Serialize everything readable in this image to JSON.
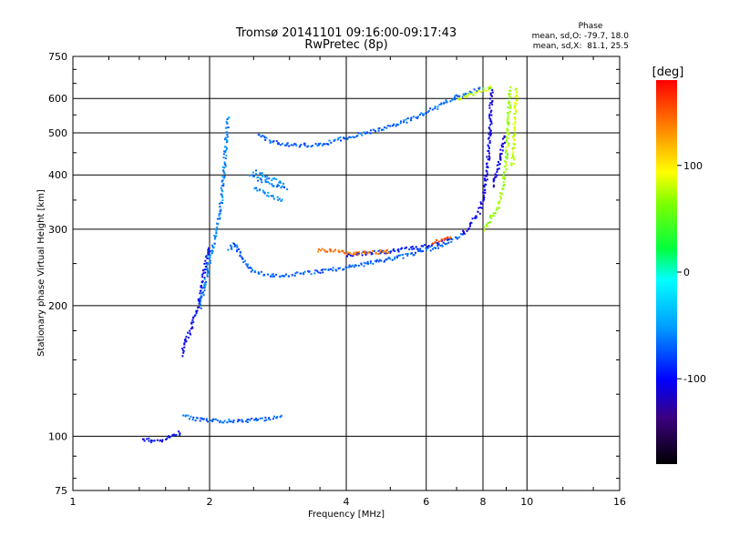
{
  "title_line1": "Tromsø 20141101 09:16:00-09:17:43",
  "title_line2": "RwPretec (8p)",
  "phase_info": {
    "heading": "Phase",
    "line_o": "mean, sd,O: -79.7, 18.0",
    "line_x": "mean, sd,X:  81.1, 25.5"
  },
  "colorbar": {
    "label": "[deg]",
    "ticks": [
      {
        "value": 100,
        "label": "100"
      },
      {
        "value": 0,
        "label": "0"
      },
      {
        "value": -100,
        "label": "-100"
      }
    ],
    "range": [
      -180,
      180
    ],
    "scale": "rainbow"
  },
  "chart_data": {
    "type": "scatter",
    "xlabel": "Frequency [MHz]",
    "ylabel": "Stationary phase Virtual Height [km]",
    "xscale": "log",
    "yscale": "log",
    "xlim": [
      1,
      16
    ],
    "ylim": [
      75,
      750
    ],
    "grid": true,
    "x_ticks": [
      {
        "value": 1,
        "label": "1"
      },
      {
        "value": 2,
        "label": "2"
      },
      {
        "value": 4,
        "label": "4"
      },
      {
        "value": 6,
        "label": "6"
      },
      {
        "value": 8,
        "label": "8"
      },
      {
        "value": 10,
        "label": "10"
      },
      {
        "value": 16,
        "label": "16"
      }
    ],
    "y_ticks": [
      {
        "value": 75,
        "label": "75"
      },
      {
        "value": 100,
        "label": "100"
      },
      {
        "value": 200,
        "label": "200"
      },
      {
        "value": 300,
        "label": "300"
      },
      {
        "value": 400,
        "label": "400"
      },
      {
        "value": 500,
        "label": "500"
      },
      {
        "value": 600,
        "label": "600"
      },
      {
        "value": 750,
        "label": "750"
      }
    ],
    "traces": [
      {
        "points": [
          [
            1.42,
            99
          ],
          [
            1.5,
            98
          ],
          [
            1.55,
            98
          ],
          [
            1.6,
            99
          ],
          [
            1.65,
            101
          ],
          [
            1.7,
            102
          ],
          [
            1.72,
            103
          ]
        ],
        "phase": -100
      },
      {
        "points": [
          [
            1.75,
            112
          ],
          [
            1.85,
            110
          ],
          [
            2.0,
            109
          ],
          [
            2.2,
            109
          ],
          [
            2.4,
            109
          ],
          [
            2.6,
            110
          ],
          [
            2.8,
            111
          ],
          [
            2.9,
            112
          ]
        ],
        "phase": -70
      },
      {
        "points": [
          [
            1.73,
            155
          ],
          [
            1.76,
            165
          ],
          [
            1.82,
            180
          ],
          [
            1.88,
            200
          ],
          [
            1.92,
            225
          ],
          [
            1.95,
            250
          ],
          [
            1.98,
            275
          ]
        ],
        "phase": -100
      },
      {
        "points": [
          [
            1.9,
            200
          ],
          [
            1.95,
            230
          ],
          [
            2.0,
            260
          ],
          [
            2.05,
            290
          ],
          [
            2.1,
            330
          ],
          [
            2.13,
            380
          ],
          [
            2.15,
            430
          ],
          [
            2.17,
            500
          ],
          [
            2.19,
            550
          ]
        ],
        "phase": -60
      },
      {
        "points": [
          [
            2.2,
            270
          ],
          [
            2.25,
            280
          ],
          [
            2.3,
            270
          ],
          [
            2.4,
            250
          ],
          [
            2.5,
            240
          ],
          [
            2.8,
            235
          ],
          [
            3.2,
            238
          ],
          [
            3.6,
            242
          ],
          [
            4.0,
            246
          ],
          [
            4.5,
            252
          ],
          [
            5.0,
            258
          ],
          [
            5.5,
            263
          ],
          [
            6.0,
            270
          ],
          [
            6.5,
            278
          ],
          [
            7.0,
            288
          ],
          [
            7.3,
            296
          ]
        ],
        "phase": -70
      },
      {
        "points": [
          [
            4.0,
            262
          ],
          [
            4.5,
            266
          ],
          [
            5.0,
            268
          ],
          [
            5.5,
            272
          ],
          [
            6.0,
            275
          ],
          [
            6.5,
            282
          ],
          [
            6.8,
            285
          ]
        ],
        "phase": -95
      },
      {
        "points": [
          [
            3.45,
            270
          ],
          [
            3.7,
            268
          ],
          [
            4.0,
            266
          ],
          [
            4.3,
            265
          ],
          [
            4.6,
            266
          ],
          [
            5.0,
            268
          ]
        ],
        "phase": 140
      },
      {
        "points": [
          [
            6.2,
            282
          ],
          [
            6.5,
            285
          ],
          [
            6.8,
            290
          ]
        ],
        "phase": 150
      },
      {
        "points": [
          [
            7.2,
            296
          ],
          [
            7.5,
            310
          ],
          [
            7.8,
            330
          ],
          [
            8.0,
            360
          ],
          [
            8.1,
            400
          ],
          [
            8.2,
            450
          ],
          [
            8.25,
            500
          ],
          [
            8.28,
            550
          ],
          [
            8.3,
            600
          ],
          [
            8.32,
            640
          ]
        ],
        "phase": -105
      },
      {
        "points": [
          [
            8.0,
            300
          ],
          [
            8.3,
            320
          ],
          [
            8.6,
            340
          ],
          [
            8.8,
            370
          ],
          [
            8.9,
            410
          ],
          [
            9.0,
            460
          ],
          [
            9.05,
            520
          ],
          [
            9.1,
            580
          ],
          [
            9.12,
            640
          ]
        ],
        "phase": 70
      },
      {
        "points": [
          [
            9.25,
            420
          ],
          [
            9.3,
            460
          ],
          [
            9.35,
            520
          ],
          [
            9.4,
            580
          ],
          [
            9.45,
            640
          ]
        ],
        "phase": 80
      },
      {
        "points": [
          [
            8.4,
            380
          ],
          [
            8.5,
            400
          ],
          [
            8.6,
            420
          ],
          [
            8.7,
            440
          ],
          [
            8.8,
            470
          ],
          [
            8.9,
            500
          ]
        ],
        "phase": -110
      },
      {
        "points": [
          [
            2.55,
            495
          ],
          [
            2.8,
            475
          ],
          [
            3.2,
            470
          ],
          [
            3.6,
            475
          ],
          [
            4.0,
            490
          ],
          [
            4.5,
            505
          ],
          [
            5.0,
            520
          ],
          [
            5.5,
            540
          ],
          [
            6.0,
            560
          ],
          [
            6.5,
            585
          ],
          [
            7.0,
            610
          ],
          [
            7.5,
            625
          ],
          [
            8.0,
            635
          ]
        ],
        "phase": -70
      },
      {
        "points": [
          [
            7.0,
            600
          ],
          [
            7.5,
            615
          ],
          [
            8.0,
            630
          ],
          [
            8.4,
            640
          ]
        ],
        "phase": 80
      },
      {
        "points": [
          [
            2.5,
            410
          ],
          [
            2.7,
            395
          ],
          [
            2.9,
            385
          ]
        ],
        "phase": -60
      },
      {
        "points": [
          [
            2.5,
            375
          ],
          [
            2.7,
            360
          ],
          [
            2.9,
            350
          ]
        ],
        "phase": -60
      },
      {
        "points": [
          [
            2.45,
            400
          ],
          [
            2.7,
            385
          ],
          [
            2.95,
            372
          ]
        ],
        "phase": -65
      }
    ]
  }
}
